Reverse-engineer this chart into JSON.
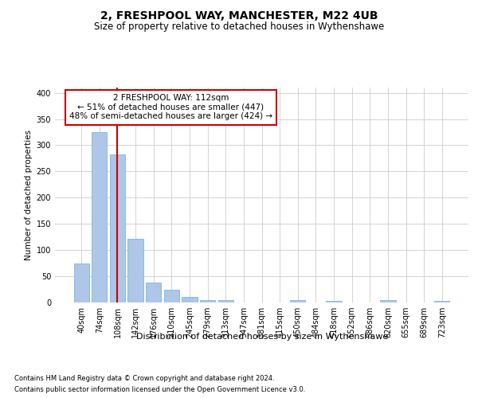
{
  "title1": "2, FRESHPOOL WAY, MANCHESTER, M22 4UB",
  "title2": "Size of property relative to detached houses in Wythenshawe",
  "xlabel": "Distribution of detached houses by size in Wythenshawe",
  "ylabel": "Number of detached properties",
  "categories": [
    "40sqm",
    "74sqm",
    "108sqm",
    "142sqm",
    "176sqm",
    "210sqm",
    "245sqm",
    "279sqm",
    "313sqm",
    "347sqm",
    "381sqm",
    "415sqm",
    "450sqm",
    "484sqm",
    "518sqm",
    "552sqm",
    "586sqm",
    "620sqm",
    "655sqm",
    "689sqm",
    "723sqm"
  ],
  "values": [
    75,
    325,
    282,
    122,
    38,
    25,
    11,
    4,
    4,
    0,
    0,
    0,
    5,
    0,
    3,
    0,
    0,
    4,
    0,
    0,
    3
  ],
  "bar_color": "#aec6e8",
  "bar_edge_color": "#6aaed6",
  "vline_x": 2,
  "vline_color": "#cc0000",
  "annotation_text": "2 FRESHPOOL WAY: 112sqm\n← 51% of detached houses are smaller (447)\n48% of semi-detached houses are larger (424) →",
  "annotation_box_color": "#ffffff",
  "annotation_box_edge": "#cc0000",
  "ylim": [
    0,
    410
  ],
  "yticks": [
    0,
    50,
    100,
    150,
    200,
    250,
    300,
    350,
    400
  ],
  "footer1": "Contains HM Land Registry data © Crown copyright and database right 2024.",
  "footer2": "Contains public sector information licensed under the Open Government Licence v3.0.",
  "bg_color": "#ffffff",
  "grid_color": "#cccccc",
  "title1_fontsize": 10,
  "title2_fontsize": 8.5,
  "ylabel_fontsize": 7.5,
  "xlabel_fontsize": 8,
  "tick_fontsize": 7,
  "footer_fontsize": 6,
  "ann_fontsize": 7.5
}
